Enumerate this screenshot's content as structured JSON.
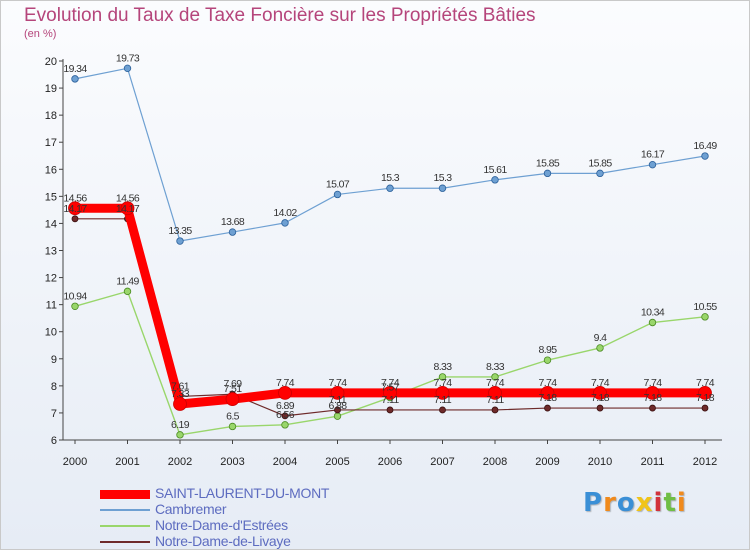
{
  "chart_data": {
    "type": "line",
    "title": "Evolution du Taux de Taxe Foncière sur les Propriétés Bâties",
    "subtitle": "(en %)",
    "xlabel": "",
    "ylabel": "",
    "x": [
      "2000",
      "2001",
      "2002",
      "2003",
      "2004",
      "2005",
      "2006",
      "2007",
      "2008",
      "2009",
      "2010",
      "2011",
      "2012"
    ],
    "yticks": [
      "6",
      "7",
      "8",
      "9",
      "10",
      "11",
      "12",
      "13",
      "14",
      "15",
      "16",
      "17",
      "18",
      "19",
      "20"
    ],
    "ylim": [
      6,
      20
    ],
    "grid": false,
    "legend_position": "bottom-left",
    "series": [
      {
        "name": "SAINT-LAURENT-DU-MONT",
        "color": "#ff0000",
        "values": [
          14.56,
          14.56,
          7.33,
          7.51,
          7.74,
          7.74,
          7.74,
          7.74,
          7.74,
          7.74,
          7.74,
          7.74,
          7.74
        ],
        "labels": [
          "14.56",
          "14.56",
          "7.33",
          "7.51",
          "7.74",
          "7.74",
          "7.74",
          "7.74",
          "7.74",
          "7.74",
          "7.74",
          "7.74",
          "7.74"
        ]
      },
      {
        "name": "Cambremer",
        "color": "#6ea0d2",
        "values": [
          19.34,
          19.73,
          13.35,
          13.68,
          14.02,
          15.07,
          15.3,
          15.3,
          15.61,
          15.85,
          15.85,
          16.17,
          16.49
        ],
        "labels": [
          "19.34",
          "19.73",
          "13.35",
          "13.68",
          "14.02",
          "15.07",
          "15.3",
          "15.3",
          "15.61",
          "15.85",
          "15.85",
          "16.17",
          "16.49"
        ]
      },
      {
        "name": "Notre-Dame-d'Estrées",
        "color": "#99d66b",
        "values": [
          10.94,
          11.49,
          6.19,
          6.5,
          6.56,
          6.88,
          7.57,
          8.33,
          8.33,
          8.95,
          9.4,
          10.34,
          10.55
        ],
        "labels": [
          "10.94",
          "11.49",
          "6.19",
          "6.5",
          "6.56",
          "6.88",
          "7.57",
          "8.33",
          "8.33",
          "8.95",
          "9.4",
          "10.34",
          "10.55"
        ]
      },
      {
        "name": "Notre-Dame-de-Livaye",
        "color": "#6e2a2a",
        "values": [
          14.17,
          14.17,
          7.61,
          7.69,
          6.89,
          7.11,
          7.11,
          7.11,
          7.11,
          7.18,
          7.18,
          7.18,
          7.18
        ],
        "labels": [
          "14.17",
          "14.17",
          "7.61",
          "7.69",
          "6.89",
          "7.11",
          "7.11",
          "7.11",
          "7.11",
          "7.18",
          "7.18",
          "7.18",
          "7.18"
        ]
      }
    ]
  },
  "logo": {
    "letters": [
      "P",
      "r",
      "o",
      "x",
      "i",
      "t",
      "i"
    ],
    "colors": [
      "#3a8fd6",
      "#f08a1c",
      "#3a8fd6",
      "#f0c419",
      "#d2323c",
      "#6fbe44",
      "#f08a1c"
    ]
  }
}
